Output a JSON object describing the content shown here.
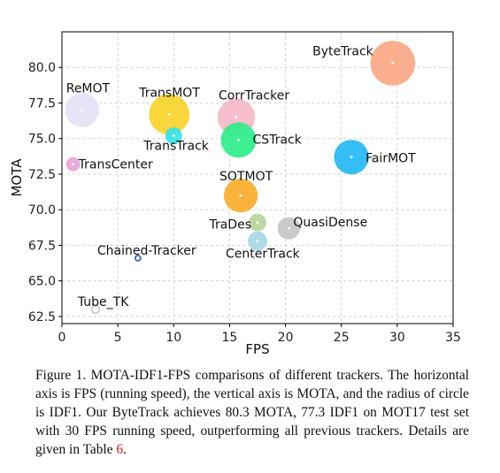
{
  "chart_data": {
    "type": "scatter",
    "xlabel": "FPS",
    "ylabel": "MOTA",
    "xlim": [
      0,
      35
    ],
    "ylim": [
      62,
      82.5
    ],
    "xticks": [
      "0",
      "5",
      "10",
      "15",
      "20",
      "25",
      "30",
      "35"
    ],
    "yticks": [
      "62.5",
      "65.0",
      "67.5",
      "70.0",
      "72.5",
      "75.0",
      "77.5",
      "80.0"
    ],
    "grid": true,
    "points": [
      {
        "name": "ByteTrack",
        "x": 29.6,
        "y": 80.3,
        "idf1": 77.3,
        "color": "#fca884"
      },
      {
        "name": "ReMOT",
        "x": 1.8,
        "y": 77.0,
        "idf1": 72.0,
        "color": "#e3e3f6"
      },
      {
        "name": "TransMOT",
        "x": 9.6,
        "y": 76.7,
        "idf1": 75.1,
        "color": "#f9d22a"
      },
      {
        "name": "CorrTracker",
        "x": 15.6,
        "y": 76.5,
        "idf1": 73.6,
        "color": "#f6b8c9"
      },
      {
        "name": "TransTrack",
        "x": 10.0,
        "y": 75.2,
        "idf1": 63.5,
        "color": "#38e3e8"
      },
      {
        "name": "CSTrack",
        "x": 15.8,
        "y": 74.9,
        "idf1": 72.6,
        "color": "#2eed8a"
      },
      {
        "name": "FairMOT",
        "x": 25.9,
        "y": 73.7,
        "idf1": 72.3,
        "color": "#24b8f4"
      },
      {
        "name": "TransCenter",
        "x": 1.0,
        "y": 73.2,
        "idf1": 62.2,
        "color": "#e8a3d8"
      },
      {
        "name": "SOTMOT",
        "x": 16.0,
        "y": 71.0,
        "idf1": 71.9,
        "color": "#f8ac2a"
      },
      {
        "name": "TraDes",
        "x": 17.5,
        "y": 69.1,
        "idf1": 63.9,
        "color": "#b8d49c"
      },
      {
        "name": "QuasiDense",
        "x": 20.3,
        "y": 68.7,
        "idf1": 66.3,
        "color": "#c6c6c6"
      },
      {
        "name": "CenterTrack",
        "x": 17.5,
        "y": 67.8,
        "idf1": 64.7,
        "color": "#a6d8e6"
      },
      {
        "name": "Chained-Tracker",
        "x": 6.8,
        "y": 66.6,
        "idf1": 57.4,
        "color": "#3f5bb5"
      },
      {
        "name": "Tube_TK",
        "x": 3.0,
        "y": 63.0,
        "idf1": 58.6,
        "color": "#cccccc"
      }
    ]
  },
  "caption": {
    "text": "Figure 1. MOTA-IDF1-FPS comparisons of different trackers. The horizontal axis is FPS (running speed), the vertical axis is MOTA, and the radius of circle is IDF1. Our ByteTrack achieves 80.3 MOTA, 77.3 IDF1 on MOT17 test set with 30 FPS running speed, outperforming all previous trackers. Details are given in Table ",
    "ref": "6",
    "end": "."
  }
}
